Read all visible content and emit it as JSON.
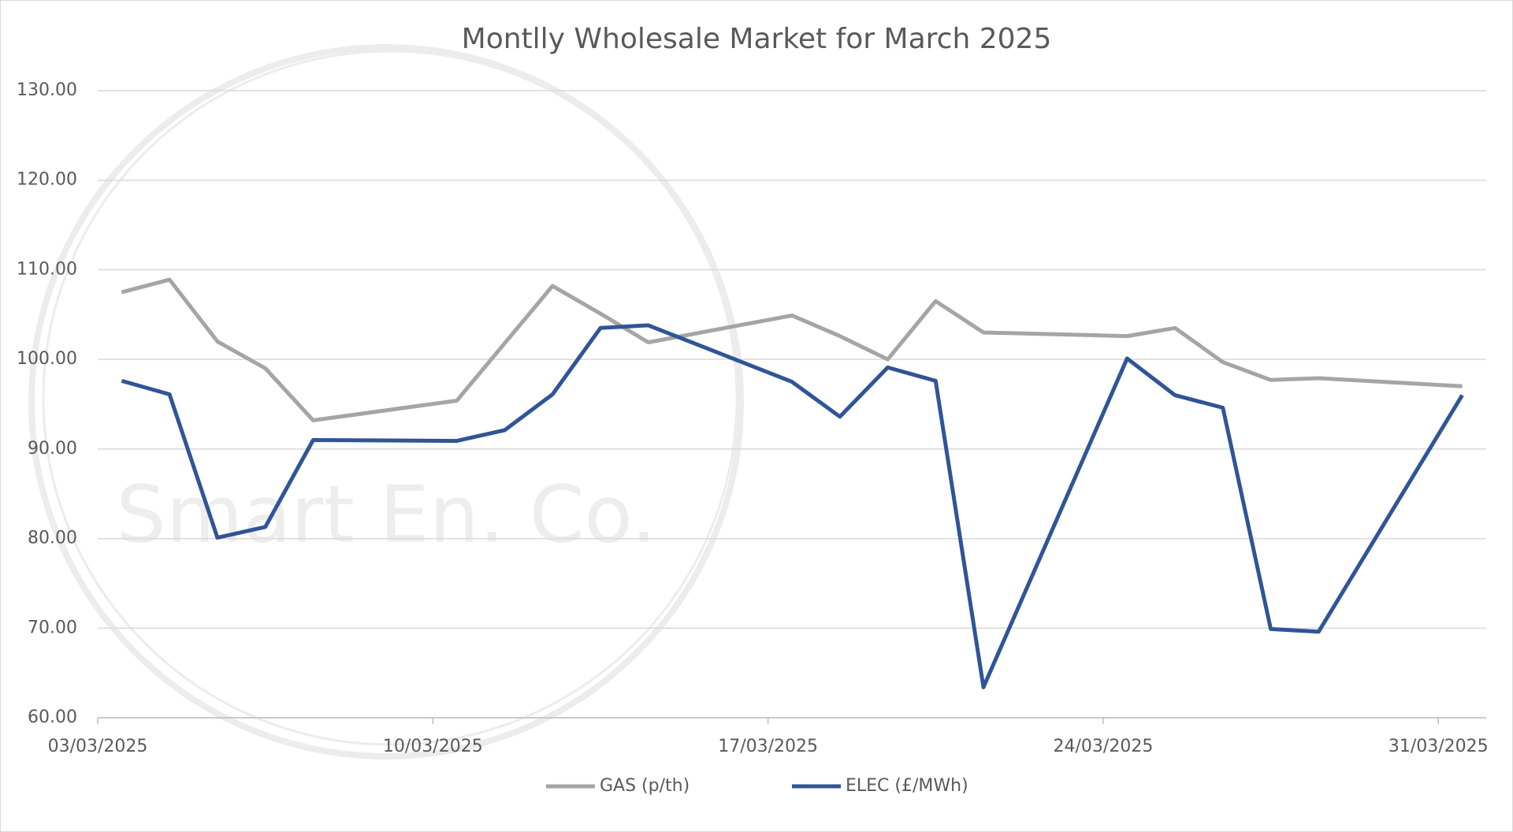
{
  "chart_data": {
    "type": "line",
    "title": "Montlly Wholesale Market for March 2025",
    "watermark": "Smart En. Co.",
    "x": [
      "03/03/2025",
      "04/03/2025",
      "05/03/2025",
      "06/03/2025",
      "07/03/2025",
      "10/03/2025",
      "11/03/2025",
      "12/03/2025",
      "13/03/2025",
      "14/03/2025",
      "17/03/2025",
      "18/03/2025",
      "19/03/2025",
      "20/03/2025",
      "21/03/2025",
      "24/03/2025",
      "25/03/2025",
      "26/03/2025",
      "27/03/2025",
      "28/03/2025",
      "31/03/2025"
    ],
    "series": [
      {
        "name": "GAS (p/th)",
        "color": "#a5a5a5",
        "values": [
          107.5,
          108.9,
          102.0,
          99.0,
          93.2,
          95.4,
          101.8,
          108.2,
          105.1,
          101.9,
          104.9,
          102.6,
          100.0,
          106.5,
          103.0,
          102.6,
          103.5,
          99.7,
          97.7,
          97.9,
          97.0
        ]
      },
      {
        "name": "ELEC (£/MWh)",
        "color": "#2f5597",
        "values": [
          97.6,
          96.1,
          80.1,
          81.3,
          91.0,
          90.9,
          92.1,
          96.1,
          103.5,
          103.8,
          97.5,
          93.6,
          99.1,
          97.6,
          63.4,
          100.1,
          96.0,
          94.6,
          69.9,
          69.6,
          96.0
        ]
      }
    ],
    "xlim": [
      "03/03/2025",
      "01/04/2025"
    ],
    "xticks": [
      "03/03/2025",
      "10/03/2025",
      "17/03/2025",
      "24/03/2025",
      "31/03/2025"
    ],
    "ylim": [
      60,
      130
    ],
    "yticks": [
      {
        "value": 60,
        "label": "60.00"
      },
      {
        "value": 70,
        "label": "70.00"
      },
      {
        "value": 80,
        "label": "80.00"
      },
      {
        "value": 90,
        "label": "90.00"
      },
      {
        "value": 100,
        "label": "100.00"
      },
      {
        "value": 110,
        "label": "110.00"
      },
      {
        "value": 120,
        "label": "120.00"
      },
      {
        "value": 130,
        "label": "130.00"
      }
    ],
    "grid": true,
    "legend": "bottom"
  }
}
